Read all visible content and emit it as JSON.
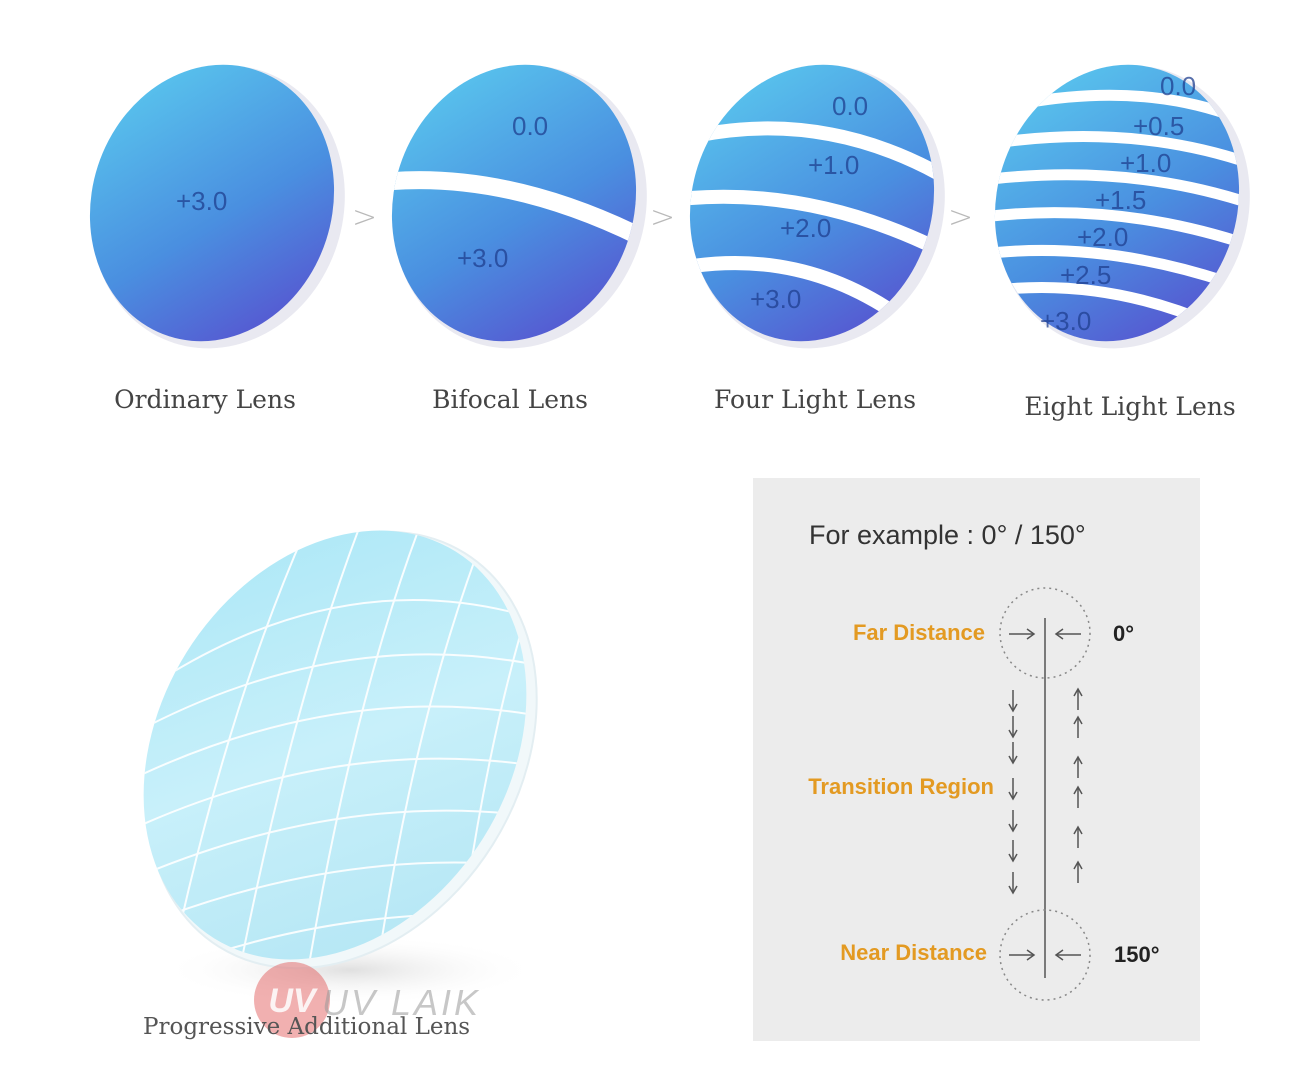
{
  "lenses": {
    "ordinary": {
      "caption": "Ordinary Lens",
      "zones": [
        "+3.0"
      ]
    },
    "bifocal": {
      "caption": "Bifocal Lens",
      "zones": [
        "0.0",
        "+3.0"
      ]
    },
    "four_light": {
      "caption": "Four Light Lens",
      "zones": [
        "0.0",
        "+1.0",
        "+2.0",
        "+3.0"
      ]
    },
    "eight_light": {
      "caption": "Eight Light Lens",
      "zones": [
        "0.0",
        "+0.5",
        "+1.0",
        "+1.5",
        "+2.0",
        "+2.5",
        "+3.0"
      ]
    }
  },
  "separator": ">",
  "progressive": {
    "caption": "Progressive Additional Lens",
    "watermark": "UV LAIK"
  },
  "example_panel": {
    "title": "For example : 0°  / 150°",
    "far_label": "Far Distance",
    "far_value": "0°",
    "transition_label": "Transition Region",
    "near_label": "Near Distance",
    "near_value": "150°"
  },
  "colors": {
    "lens_light": "#5cc6ee",
    "lens_dark": "#5a4fd0",
    "accent_orange": "#e39a22",
    "panel_bg": "#ececec",
    "progressive_fill": "#c4eef8"
  }
}
